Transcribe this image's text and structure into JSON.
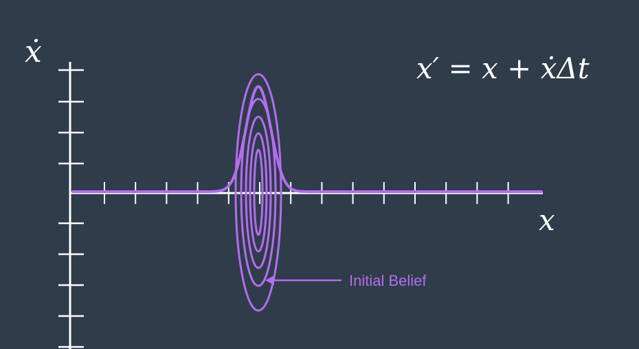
{
  "labels": {
    "y_axis": "ẋ",
    "x_axis": "x",
    "equation": "x′ = x + ẋΔt",
    "annotation": "Initial Belief"
  },
  "colors": {
    "background": "#2f3c49",
    "axis": "#ffffff",
    "belief": "#b56cf0"
  }
}
